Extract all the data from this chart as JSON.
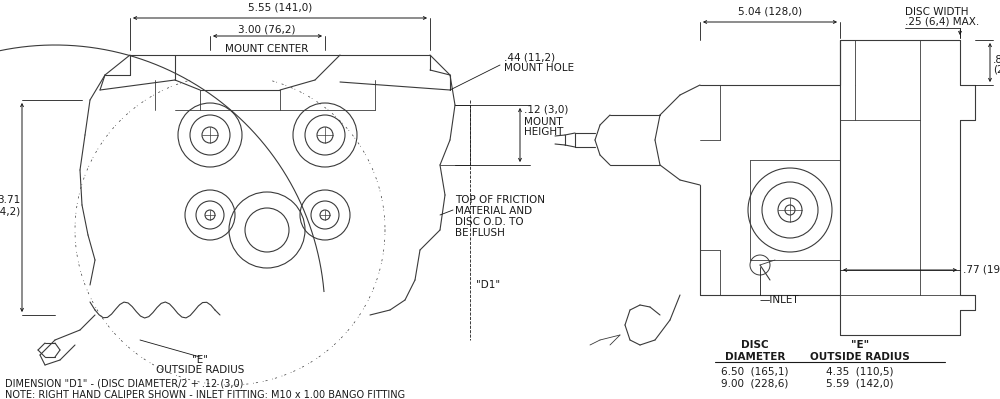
{
  "bg_color": "#ffffff",
  "line_color": "#1a1a1a",
  "caliper_color": "#3a3a3a",
  "font_size": 7.5,
  "font_size_note": 7.0,
  "table": {
    "rows": [
      [
        "6.50  (165,1)",
        "4.35  (110,5)"
      ],
      [
        "9.00  (228,6)",
        "5.59  (142,0)"
      ]
    ]
  },
  "notes": [
    "DIMENSION \"D1\" - (DISC DIAMETER/2 + .12 (3,0)",
    "NOTE: RIGHT HAND CALIPER SHOWN - INLET FITTING: M10 x 1.00 BANGO FITTING"
  ]
}
